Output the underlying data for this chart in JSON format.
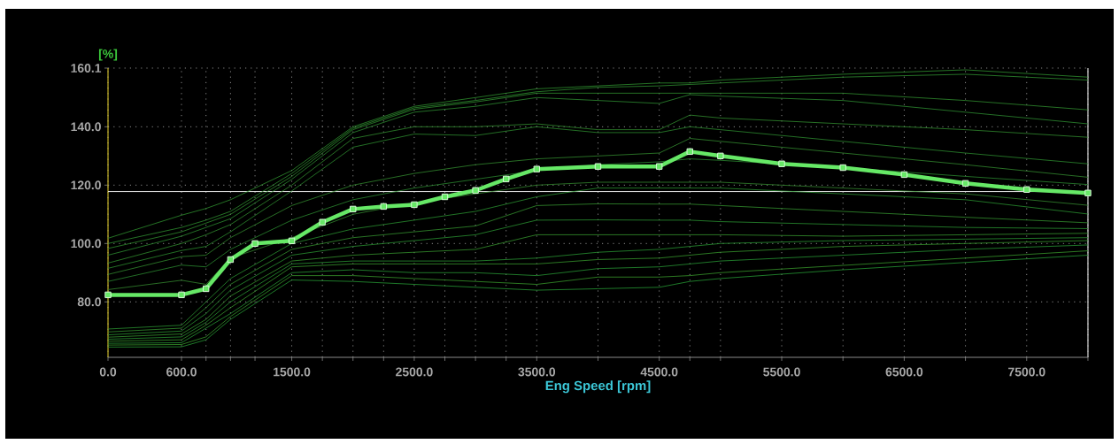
{
  "chart_data": {
    "type": "line",
    "xlabel": "Eng Speed [rpm]",
    "ylabel": "[%]",
    "xlim": [
      0,
      8000
    ],
    "ylim": [
      61,
      160.1
    ],
    "xticks": [
      {
        "value": 0,
        "label": "0.0"
      },
      {
        "value": 600,
        "label": "600.0"
      },
      {
        "value": 800,
        "label": null
      },
      {
        "value": 1000,
        "label": null
      },
      {
        "value": 1200,
        "label": null
      },
      {
        "value": 1500,
        "label": "1500.0"
      },
      {
        "value": 1750,
        "label": null
      },
      {
        "value": 2000,
        "label": null
      },
      {
        "value": 2250,
        "label": null
      },
      {
        "value": 2500,
        "label": "2500.0"
      },
      {
        "value": 2750,
        "label": null
      },
      {
        "value": 3000,
        "label": null
      },
      {
        "value": 3250,
        "label": null
      },
      {
        "value": 3500,
        "label": "3500.0"
      },
      {
        "value": 4000,
        "label": null
      },
      {
        "value": 4500,
        "label": "4500.0"
      },
      {
        "value": 4750,
        "label": null
      },
      {
        "value": 5000,
        "label": null
      },
      {
        "value": 5500,
        "label": "5500.0"
      },
      {
        "value": 6000,
        "label": null
      },
      {
        "value": 6500,
        "label": "6500.0"
      },
      {
        "value": 7000,
        "label": null
      },
      {
        "value": 7500,
        "label": "7500.0"
      },
      {
        "value": 8000,
        "label": null
      }
    ],
    "yticks": [
      {
        "value": 80,
        "label": "80.0"
      },
      {
        "value": 100,
        "label": "100.0"
      },
      {
        "value": 120,
        "label": "120.0"
      },
      {
        "value": 140,
        "label": "140.0"
      },
      {
        "value": 160.1,
        "label": "160.1"
      }
    ],
    "grid": true,
    "ref_lines": [
      {
        "axis": "y",
        "value": 117.8,
        "color": "#e8e8e8"
      }
    ],
    "series": [
      {
        "color": "#2f8f2f",
        "marker": "none",
        "x": [
          0,
          600,
          800,
          1000,
          1500,
          2000,
          2500,
          3000,
          3500,
          4000,
          4500,
          4750,
          5000,
          6000,
          7000,
          8000
        ],
        "values": [
          101.8,
          109.7,
          112,
          115,
          125,
          140,
          147,
          150,
          153,
          154,
          155,
          155,
          156,
          158,
          159.5,
          157
        ]
      },
      {
        "color": "#2e8e30",
        "marker": "none",
        "x": [
          0,
          600,
          800,
          1000,
          1500,
          2000,
          2500,
          3000,
          3500,
          4000,
          4500,
          4750,
          5000,
          6000,
          7000,
          8000
        ],
        "values": [
          100,
          105.5,
          108,
          111,
          124,
          139.5,
          146.5,
          149,
          152,
          153.5,
          154,
          154.5,
          155,
          157,
          158,
          156
        ]
      },
      {
        "color": "#308d2e",
        "marker": "none",
        "x": [
          0,
          600,
          800,
          1000,
          1500,
          2000,
          2500,
          3000,
          3500,
          4000,
          4500,
          4750,
          5000,
          6000,
          7000,
          8000
        ],
        "values": [
          98.3,
          104,
          107,
          110,
          123,
          139,
          146,
          148.5,
          151.5,
          151.5,
          151.5,
          151.5,
          151.5,
          151.5,
          149,
          145.8
        ]
      },
      {
        "color": "#2d8c31",
        "marker": "none",
        "x": [
          0,
          600,
          800,
          1000,
          1500,
          2000,
          2500,
          3000,
          3500,
          4000,
          4500,
          4750,
          5000,
          6000,
          7000,
          8000
        ],
        "values": [
          96,
          102.5,
          105.5,
          108.5,
          122,
          138,
          145,
          147,
          150,
          149,
          148,
          151,
          150.5,
          149,
          145,
          141
        ]
      },
      {
        "color": "#318b2f",
        "marker": "none",
        "x": [
          0,
          600,
          800,
          1000,
          1500,
          2000,
          2500,
          3000,
          3500,
          4000,
          4500,
          4750,
          5000,
          6000,
          7000,
          8000
        ],
        "values": [
          93.3,
          100,
          103,
          106.5,
          120,
          136,
          140,
          140,
          141,
          139,
          139,
          144,
          143,
          141,
          139,
          136.4
        ]
      },
      {
        "color": "#2c8a2f",
        "marker": "none",
        "x": [
          0,
          600,
          800,
          1000,
          1500,
          2000,
          2500,
          3000,
          3500,
          4000,
          4500,
          4750,
          5000,
          6000,
          7000,
          8000
        ],
        "values": [
          91.5,
          97.6,
          99,
          104,
          118,
          133,
          137.5,
          137,
          140,
          138,
          138,
          140,
          139,
          135,
          131,
          127.3
        ]
      },
      {
        "color": "#32892e",
        "marker": "none",
        "x": [
          0,
          600,
          800,
          1000,
          1500,
          2000,
          2500,
          3000,
          3500,
          4000,
          4500,
          4750,
          5000,
          6000,
          7000,
          8000
        ],
        "values": [
          89.4,
          95.5,
          96,
          102,
          113,
          120,
          124,
          127,
          129,
          130,
          131,
          136,
          135,
          131,
          127,
          122.7
        ]
      },
      {
        "color": "#2b8830",
        "marker": "none",
        "x": [
          0,
          600,
          800,
          1000,
          1500,
          2000,
          2500,
          3000,
          3500,
          4000,
          4500,
          4750,
          5000,
          6000,
          7000,
          8000
        ],
        "values": [
          87,
          92.6,
          92,
          98,
          108,
          115,
          119,
          122,
          125,
          127,
          128,
          129,
          128.5,
          126,
          123,
          120.2
        ]
      },
      {
        "color": "#33872f",
        "marker": "none",
        "x": [
          0,
          600,
          800,
          1000,
          1500,
          2000,
          2500,
          3000,
          3500,
          4000,
          4500,
          4750,
          5000,
          6000,
          7000,
          8000
        ],
        "values": [
          84.2,
          87.4,
          86,
          95,
          102,
          110,
          114,
          117,
          120,
          121,
          121,
          121,
          121,
          119,
          117,
          113.1
        ]
      },
      {
        "color": "#2a9030",
        "marker": "none",
        "x": [
          0,
          600,
          800,
          1000,
          1500,
          2000,
          2500,
          3000,
          3500,
          4000,
          4500,
          4750,
          5000,
          6000,
          7000,
          8000
        ],
        "values": [
          70.7,
          72,
          80,
          88,
          100,
          105,
          108,
          111,
          116,
          119,
          119,
          119,
          119,
          117,
          115,
          110.1
        ]
      },
      {
        "color": "#34912e",
        "marker": "none",
        "x": [
          0,
          600,
          800,
          1000,
          1500,
          2000,
          2500,
          3000,
          3500,
          4000,
          4500,
          4750,
          5000,
          6000,
          7000,
          8000
        ],
        "values": [
          69.7,
          71,
          78,
          86,
          98,
          102,
          104,
          106,
          113,
          113.6,
          113.5,
          113.5,
          113,
          111,
          109,
          107.1
        ]
      },
      {
        "color": "#299231",
        "marker": "none",
        "x": [
          0,
          600,
          800,
          1000,
          1500,
          2000,
          2500,
          3000,
          3500,
          4000,
          4500,
          4750,
          5000,
          6000,
          7000,
          8000
        ],
        "values": [
          68.7,
          70,
          76,
          84,
          96,
          99,
          101,
          103,
          108,
          108.1,
          108,
          108,
          107.5,
          106.5,
          105.5,
          105.1
        ]
      },
      {
        "color": "#35932d",
        "marker": "none",
        "x": [
          0,
          600,
          800,
          1000,
          1500,
          2000,
          2500,
          3000,
          3500,
          4000,
          4500,
          4750,
          5000,
          6000,
          7000,
          8000
        ],
        "values": [
          67.9,
          69,
          74,
          82,
          94,
          96,
          97,
          98,
          103,
          103,
          103,
          103,
          103,
          102.5,
          103,
          103.5
        ]
      },
      {
        "color": "#289432",
        "marker": "none",
        "x": [
          0,
          600,
          800,
          1000,
          1500,
          2000,
          2500,
          3000,
          3500,
          4000,
          4500,
          4750,
          5000,
          6000,
          7000,
          8000
        ],
        "values": [
          67.2,
          68,
          73,
          80,
          93,
          94,
          94,
          94,
          95,
          97,
          98,
          99,
          100,
          101,
          101.5,
          102
        ]
      },
      {
        "color": "#36952c",
        "marker": "none",
        "x": [
          0,
          600,
          800,
          1000,
          1500,
          2000,
          2500,
          3000,
          3500,
          4000,
          4500,
          4750,
          5000,
          6000,
          7000,
          8000
        ],
        "values": [
          66.5,
          67,
          72,
          78,
          92,
          93,
          93,
          93,
          93,
          94.5,
          95,
          96,
          97,
          99,
          100,
          101
        ]
      },
      {
        "color": "#279633",
        "marker": "none",
        "x": [
          0,
          600,
          800,
          1000,
          1500,
          2000,
          2500,
          3000,
          3500,
          4000,
          4500,
          4750,
          5000,
          6000,
          7000,
          8000
        ],
        "values": [
          65.8,
          66,
          71,
          76,
          90,
          91,
          90,
          90,
          89,
          91.4,
          92,
          93,
          94,
          96,
          98,
          99.5
        ]
      },
      {
        "color": "#37972b",
        "marker": "none",
        "x": [
          0,
          600,
          800,
          1000,
          1500,
          2000,
          2500,
          3000,
          3500,
          4000,
          4500,
          4750,
          5000,
          6000,
          7000,
          8000
        ],
        "values": [
          65.2,
          65.4,
          68,
          75,
          89,
          89,
          88,
          87,
          86,
          88.5,
          88.5,
          89,
          90,
          92.5,
          95,
          97.5
        ]
      },
      {
        "color": "#269834",
        "marker": "none",
        "x": [
          0,
          600,
          800,
          1000,
          1500,
          2000,
          2500,
          3000,
          3500,
          4000,
          4500,
          4750,
          5000,
          6000,
          7000,
          8000
        ],
        "values": [
          64.5,
          64.6,
          67,
          74,
          87.5,
          87,
          86,
          85,
          84,
          84.5,
          85,
          87,
          88,
          91,
          93.5,
          96
        ]
      },
      {
        "color": "#66e866",
        "marker": "square",
        "x": [
          0,
          600,
          800,
          1000,
          1200,
          1500,
          1750,
          2000,
          2250,
          2500,
          2750,
          3000,
          3250,
          3500,
          4000,
          4500,
          4750,
          5000,
          5500,
          6000,
          6500,
          7000,
          7500,
          8000
        ],
        "values": [
          82.4,
          82.4,
          84.5,
          94.5,
          100,
          100.9,
          107.3,
          111.8,
          112.7,
          113.3,
          116,
          118.2,
          122.1,
          125.5,
          126.4,
          126.4,
          131.5,
          130,
          127.3,
          126,
          123.6,
          120.6,
          118.5,
          117.3
        ]
      }
    ]
  }
}
